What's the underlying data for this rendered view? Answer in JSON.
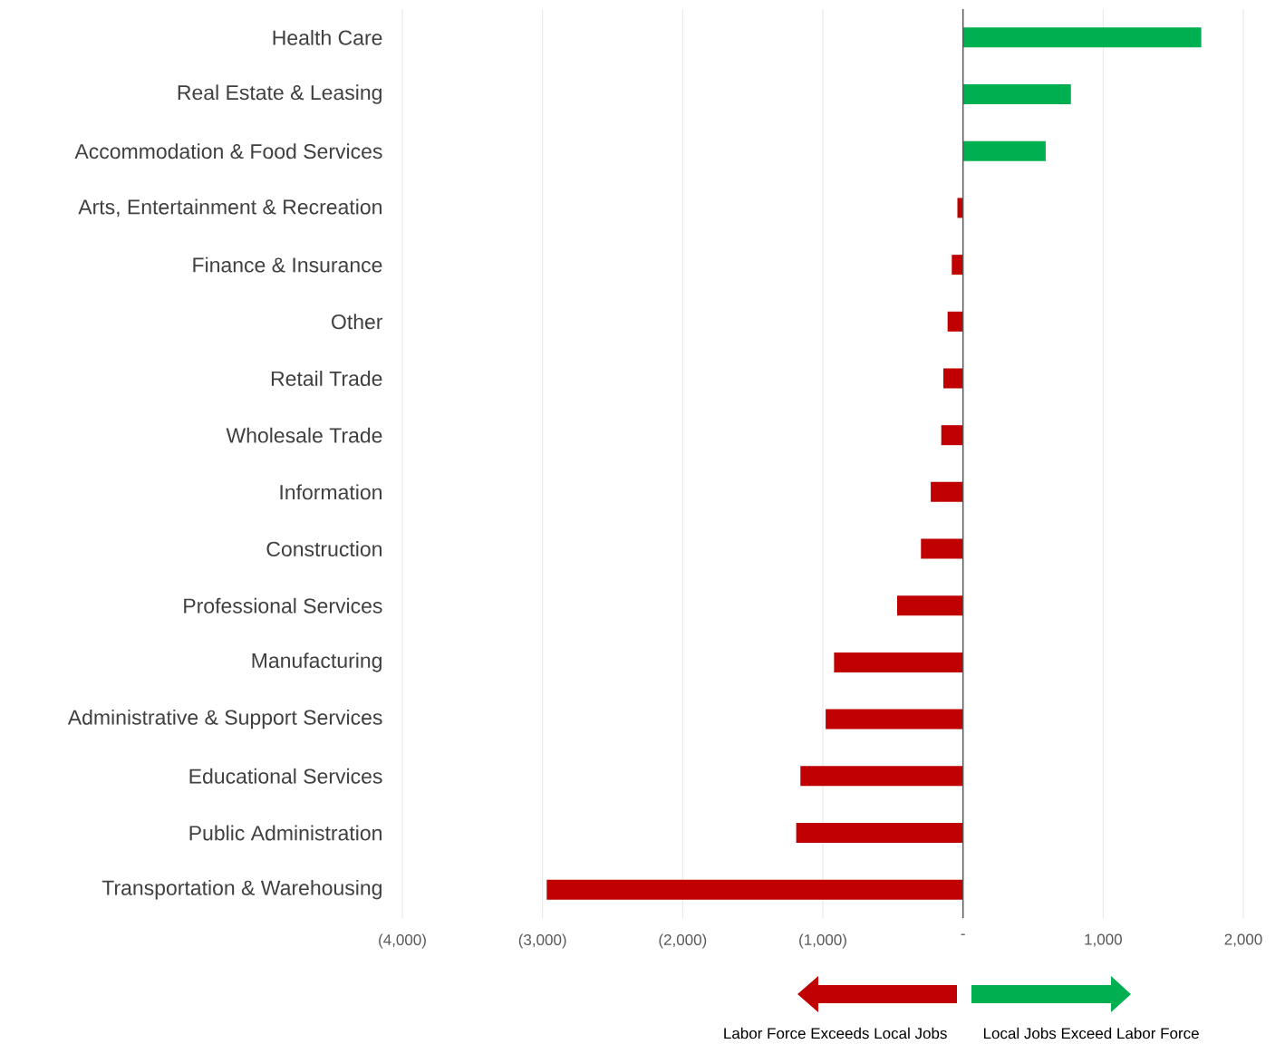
{
  "chart_data": {
    "type": "bar",
    "orientation": "horizontal",
    "categories": [
      "Health Care",
      "Real Estate & Leasing",
      "Accommodation & Food Services",
      "Arts, Entertainment & Recreation",
      "Finance & Insurance",
      "Other",
      "Retail Trade",
      "Wholesale Trade",
      "Information",
      "Construction",
      "Professional Services",
      "Manufacturing",
      "Administrative & Support Services",
      "Educational Services",
      "Public Administration",
      "Transportation & Warehousing"
    ],
    "values": [
      1700,
      770,
      590,
      -40,
      -80,
      -110,
      -140,
      -155,
      -230,
      -300,
      -470,
      -920,
      -980,
      -1160,
      -1190,
      -2970
    ],
    "colors": [
      "#00b050",
      "#00b050",
      "#00b050",
      "#c00000",
      "#c00000",
      "#c00000",
      "#c00000",
      "#c00000",
      "#c00000",
      "#c00000",
      "#c00000",
      "#c00000",
      "#c00000",
      "#c00000",
      "#c00000",
      "#c00000"
    ],
    "xlim": [
      -4000,
      2000
    ],
    "xticks": [
      {
        "value": -4000,
        "label": "(4,000)"
      },
      {
        "value": -3000,
        "label": "(3,000)"
      },
      {
        "value": -2000,
        "label": "(2,000)"
      },
      {
        "value": -1000,
        "label": "(1,000)"
      },
      {
        "value": 0,
        "label": "-"
      },
      {
        "value": 1000,
        "label": "1,000"
      },
      {
        "value": 2000,
        "label": "2,000"
      }
    ],
    "grid": "x",
    "ref_lines": [
      {
        "axis": "x",
        "value": 0,
        "color": "#595959"
      }
    ],
    "annotations": [
      "Labor Force Exceeds Local Jobs",
      "Local Jobs Exceed Labor Force"
    ]
  }
}
